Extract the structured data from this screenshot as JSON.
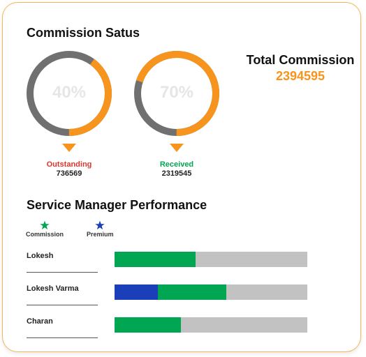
{
  "commission_status": {
    "title": "Commission Satus",
    "outstanding": {
      "percent_label": "40%",
      "percent": 40,
      "label": "Outstanding",
      "value": "736569",
      "label_color": "#e0352b"
    },
    "received": {
      "percent_label": "70%",
      "percent": 70,
      "label": "Received",
      "value": "2319545",
      "label_color": "#00a651"
    },
    "ring_colors": {
      "filled": "#f7941d",
      "remaining": "#707070"
    }
  },
  "total_commission": {
    "title": "Total Commission",
    "value": "2394595"
  },
  "performance": {
    "title": "Service Manager Performance",
    "legend": [
      {
        "label": "Commission",
        "color": "#00a651",
        "icon": "star-icon"
      },
      {
        "label": "Premium",
        "color": "#1a3fb8",
        "icon": "star-icon"
      }
    ],
    "managers": [
      {
        "name": "Lokesh",
        "premium_fraction": 0,
        "commission_fraction": 0.42
      },
      {
        "name": "Lokesh Varma",
        "premium_fraction": 0.225,
        "commission_fraction": 0.355
      },
      {
        "name": "Charan",
        "premium_fraction": 0,
        "commission_fraction": 0.345
      }
    ],
    "bar_colors": {
      "premium": "#1a3fb8",
      "commission": "#00a651",
      "remaining": "#c2c2c2"
    }
  }
}
